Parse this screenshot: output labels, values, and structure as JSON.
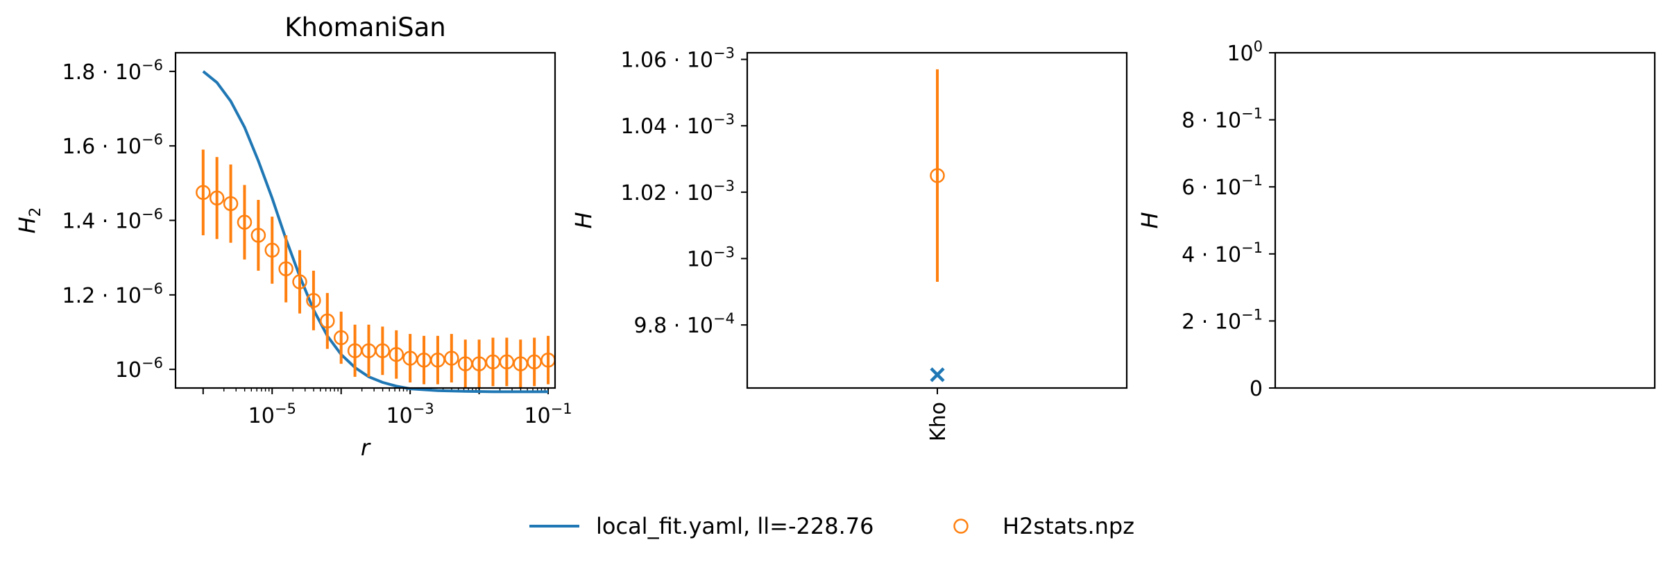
{
  "colors": {
    "model": "#1f77b4",
    "data": "#ff7f0e",
    "axes": "#000000"
  },
  "chart_data": [
    {
      "type": "line",
      "title": "KhomaniSan",
      "xlabel": "r",
      "ylabel": "H",
      "ylabel_sub": "2",
      "xscale": "log",
      "xlim_exp": [
        -6.4,
        -0.9
      ],
      "ylim": [
        9.5e-07,
        1.85e-06
      ],
      "xticks": [
        {
          "value": 1e-05,
          "base": "10",
          "exp": "−5"
        },
        {
          "value": 0.001,
          "base": "10",
          "exp": "−3"
        },
        {
          "value": 0.1,
          "base": "10",
          "exp": "−1"
        }
      ],
      "yticks": [
        {
          "value": 1e-06,
          "base": "10",
          "exp": "−6"
        },
        {
          "value": 1.2e-06,
          "base": "1.2 · 10",
          "exp": "−6"
        },
        {
          "value": 1.4e-06,
          "base": "1.4 · 10",
          "exp": "−6"
        },
        {
          "value": 1.6e-06,
          "base": "1.6 · 10",
          "exp": "−6"
        },
        {
          "value": 1.8e-06,
          "base": "1.8 · 10",
          "exp": "−6"
        }
      ],
      "series": [
        {
          "name": "local_fit.yaml, ll=-228.76",
          "kind": "line",
          "x_exp": [
            -6.0,
            -5.8,
            -5.6,
            -5.4,
            -5.2,
            -5.0,
            -4.8,
            -4.6,
            -4.4,
            -4.2,
            -4.0,
            -3.8,
            -3.6,
            -3.4,
            -3.2,
            -3.0,
            -2.6,
            -2.2,
            -1.8,
            -1.4,
            -1.0
          ],
          "y": [
            1.8e-06,
            1.77e-06,
            1.72e-06,
            1.65e-06,
            1.56e-06,
            1.46e-06,
            1.35e-06,
            1.25e-06,
            1.16e-06,
            1.09e-06,
            1.04e-06,
            1.005e-06,
            9.8e-07,
            9.65e-07,
            9.55e-07,
            9.48e-07,
            9.43e-07,
            9.41e-07,
            9.4e-07,
            9.4e-07,
            9.4e-07
          ]
        },
        {
          "name": "H2stats.npz",
          "kind": "errorbar",
          "x_exp": [
            -6.0,
            -5.8,
            -5.6,
            -5.4,
            -5.2,
            -5.0,
            -4.8,
            -4.6,
            -4.4,
            -4.2,
            -4.0,
            -3.8,
            -3.6,
            -3.4,
            -3.2,
            -3.0,
            -2.8,
            -2.6,
            -2.4,
            -2.2,
            -2.0,
            -1.8,
            -1.6,
            -1.4,
            -1.2,
            -1.0
          ],
          "y": [
            1.475e-06,
            1.46e-06,
            1.445e-06,
            1.395e-06,
            1.36e-06,
            1.32e-06,
            1.27e-06,
            1.235e-06,
            1.185e-06,
            1.13e-06,
            1.085e-06,
            1.05e-06,
            1.05e-06,
            1.05e-06,
            1.04e-06,
            1.03e-06,
            1.025e-06,
            1.025e-06,
            1.03e-06,
            1.015e-06,
            1.015e-06,
            1.02e-06,
            1.02e-06,
            1.015e-06,
            1.02e-06,
            1.025e-06
          ],
          "err": [
            1.15e-07,
            1.1e-07,
            1.05e-07,
            1e-07,
            9.5e-08,
            9e-08,
            9e-08,
            8.5e-08,
            8e-08,
            7.5e-08,
            7e-08,
            7e-08,
            7e-08,
            6.5e-08,
            6.5e-08,
            6.5e-08,
            6.5e-08,
            6.5e-08,
            6.5e-08,
            6.5e-08,
            6.5e-08,
            6.5e-08,
            6.5e-08,
            6.5e-08,
            6.5e-08,
            6.5e-08
          ]
        }
      ]
    },
    {
      "type": "scatter",
      "title": "",
      "xlabel": "",
      "ylabel": "H",
      "ylim": [
        0.000961,
        0.001062
      ],
      "categories": [
        "Kho"
      ],
      "yticks": [
        {
          "value": 0.00098,
          "base": "9.8 · 10",
          "exp": "−4"
        },
        {
          "value": 0.001,
          "base": "10",
          "exp": "−3"
        },
        {
          "value": 0.00102,
          "base": "1.02 · 10",
          "exp": "−3"
        },
        {
          "value": 0.00104,
          "base": "1.04 · 10",
          "exp": "−3"
        },
        {
          "value": 0.00106,
          "base": "1.06 · 10",
          "exp": "−3"
        }
      ],
      "series": [
        {
          "name": "local_fit.yaml, ll=-228.76",
          "kind": "cross",
          "y": [
            0.000965
          ]
        },
        {
          "name": "H2stats.npz",
          "kind": "errorbar",
          "y": [
            0.001025
          ],
          "err": [
            3.2e-05
          ]
        }
      ]
    },
    {
      "type": "scatter",
      "title": "",
      "xlabel": "",
      "ylabel": "H",
      "ylim": [
        0,
        1
      ],
      "categories": [],
      "yticks": [
        {
          "value": 0,
          "base": "0",
          "exp": ""
        },
        {
          "value": 0.2,
          "base": "2 · 10",
          "exp": "−1"
        },
        {
          "value": 0.4,
          "base": "4 · 10",
          "exp": "−1"
        },
        {
          "value": 0.6,
          "base": "6 · 10",
          "exp": "−1"
        },
        {
          "value": 0.8,
          "base": "8 · 10",
          "exp": "−1"
        },
        {
          "value": 1.0,
          "base": "10",
          "exp": "0"
        }
      ],
      "series": []
    }
  ],
  "legend": {
    "placement": "bottom-center",
    "entries": [
      {
        "label": "local_fit.yaml, ll=-228.76",
        "marker": "line",
        "color": "#1f77b4"
      },
      {
        "label": "H2stats.npz",
        "marker": "circle",
        "color": "#ff7f0e"
      }
    ]
  }
}
